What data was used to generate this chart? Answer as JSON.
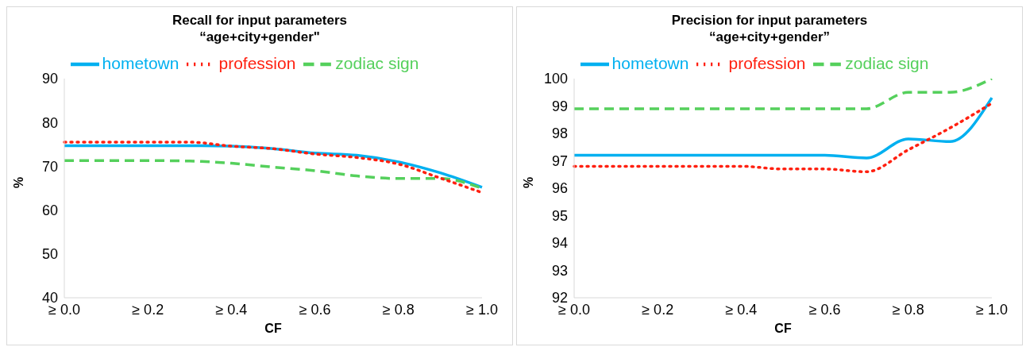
{
  "chart_data": [
    {
      "type": "line",
      "title": "Recall for input parameters\n“age+city+gender\"",
      "xlabel": "CF",
      "ylabel": "%",
      "categories": [
        "≥ 0.0",
        null,
        "≥ 0.2",
        null,
        "≥ 0.4",
        null,
        "≥ 0.6",
        null,
        "≥ 0.8",
        null,
        "≥ 1.0"
      ],
      "series": [
        {
          "name": "hometown",
          "color": "#00b0f0",
          "line_style": "solid",
          "values": [
            74.7,
            74.7,
            74.7,
            74.7,
            74.6,
            74,
            73,
            72.5,
            71,
            68.5,
            65.2
          ]
        },
        {
          "name": "zodiac sign",
          "color": "#55d05c",
          "line_style": "dashed",
          "values": [
            71.3,
            71.3,
            71.3,
            71.2,
            70.7,
            69.8,
            69,
            67.8,
            67.2,
            67.2,
            65
          ]
        },
        {
          "name": "profession",
          "color": "#ff2010",
          "line_style": "dotted",
          "values": [
            75.5,
            75.5,
            75.5,
            75.5,
            74.6,
            74,
            72.8,
            72,
            70.5,
            67.3,
            64
          ]
        }
      ],
      "ylim": [
        40,
        90
      ],
      "yticks": [
        40,
        50,
        60,
        70,
        80,
        90
      ],
      "grid": false,
      "legend": "top",
      "marker": "none"
    },
    {
      "type": "line",
      "title": "Precision for input parameters\n“age+city+gender”",
      "xlabel": "CF",
      "ylabel": "%",
      "categories": [
        "≥ 0.0",
        null,
        "≥ 0.2",
        null,
        "≥ 0.4",
        null,
        "≥ 0.6",
        null,
        "≥ 0.8",
        null,
        "≥ 1.0"
      ],
      "series": [
        {
          "name": "hometown",
          "color": "#00b0f0",
          "line_style": "solid",
          "values": [
            97.2,
            97.2,
            97.2,
            97.2,
            97.2,
            97.2,
            97.2,
            97.1,
            97.8,
            97.7,
            99.3
          ]
        },
        {
          "name": "zodiac sign",
          "color": "#55d05c",
          "line_style": "dashed",
          "values": [
            98.9,
            98.9,
            98.9,
            98.9,
            98.9,
            98.9,
            98.9,
            98.9,
            99.5,
            99.5,
            100
          ]
        },
        {
          "name": "profession",
          "color": "#ff2010",
          "line_style": "dotted",
          "values": [
            96.8,
            96.8,
            96.8,
            96.8,
            96.8,
            96.7,
            96.7,
            96.6,
            97.4,
            98.2,
            99.1
          ]
        }
      ],
      "ylim": [
        92,
        100
      ],
      "yticks": [
        92,
        93,
        94,
        95,
        96,
        97,
        98,
        99,
        100
      ],
      "grid": false,
      "legend": "top",
      "marker": "none"
    }
  ]
}
